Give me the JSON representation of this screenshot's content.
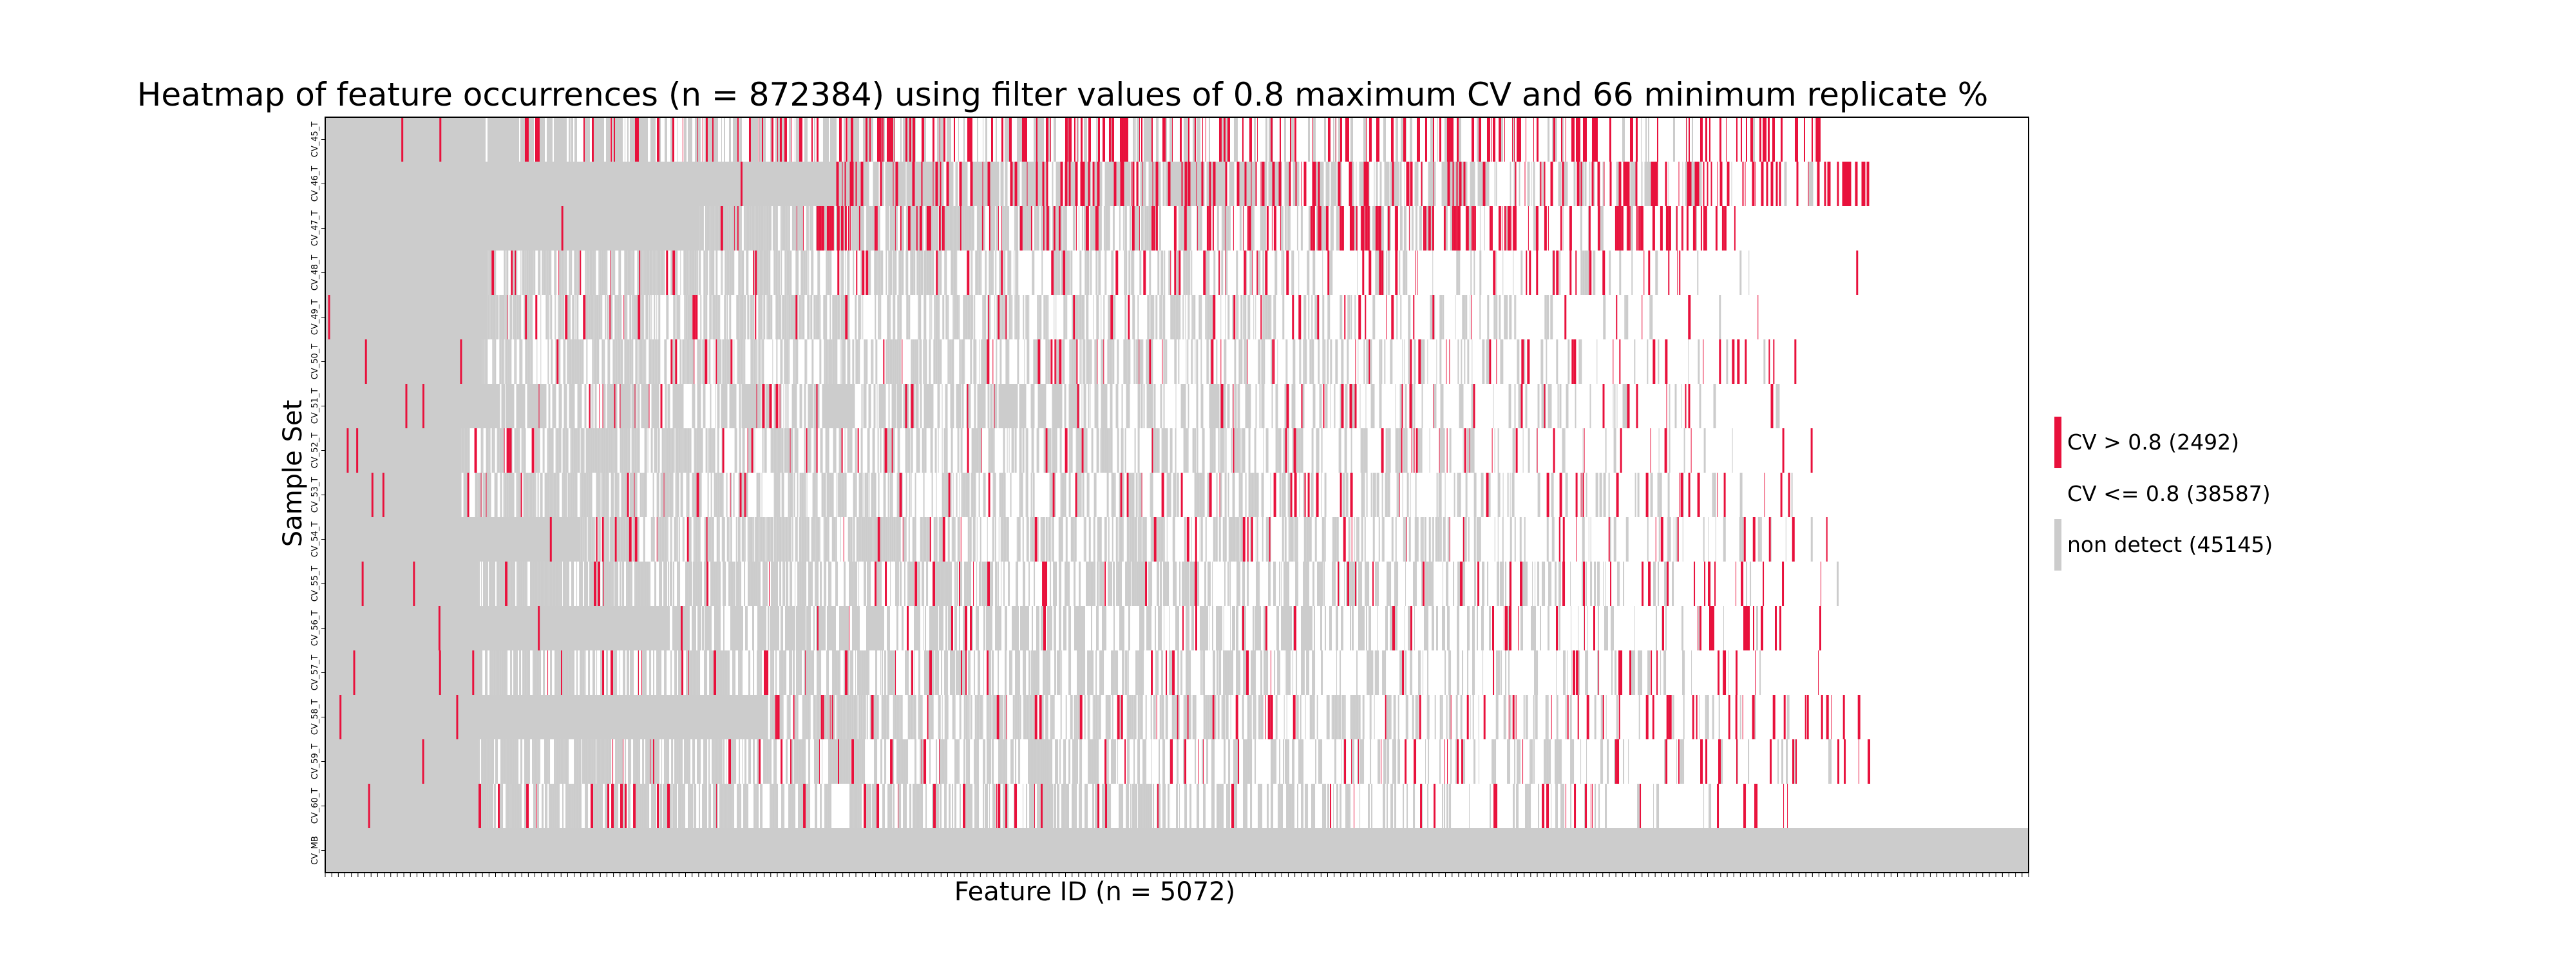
{
  "chart_data": {
    "type": "heatmap",
    "title": "Heatmap of feature occurrences (n = 872384) using filter values of 0.8 maximum CV and 66 minimum replicate %",
    "xlabel": "Feature ID (n = 5072)",
    "ylabel": "Sample Set",
    "x_tick_labels_shown": false,
    "grid": false,
    "legend_position": "right",
    "rows": [
      "CV_45_T",
      "CV_46_T",
      "CV_47_T",
      "CV_48_T",
      "CV_49_T",
      "CV_50_T",
      "CV_51_T",
      "CV_52_T",
      "CV_53_T",
      "CV_54_T",
      "CV_55_T",
      "CV_56_T",
      "CV_57_T",
      "CV_58_T",
      "CV_59_T",
      "CV_60_T",
      "CV_MB"
    ],
    "categories": [
      {
        "name": "CV > 0.8 (2492)",
        "color": "#e8113c"
      },
      {
        "name": "CV <= 0.8 (38587)",
        "color": "#ffffff"
      },
      {
        "name": "non detect (45145)",
        "color": "#cccccc"
      }
    ],
    "row_profiles": [
      {
        "gray_end": 0.093,
        "mix_end": 0.88,
        "white_start": 0.3,
        "red_density": 0.45
      },
      {
        "gray_end": 0.3,
        "mix_end": 0.905,
        "white_start": 0.74,
        "red_density": 0.6
      },
      {
        "gray_end": 0.22,
        "mix_end": 0.83,
        "white_start": 0.52,
        "red_density": 0.5
      },
      {
        "gray_end": 0.095,
        "mix_end": 0.9,
        "white_start": 0.48,
        "red_density": 0.12
      },
      {
        "gray_end": 0.095,
        "mix_end": 0.875,
        "white_start": 0.52,
        "red_density": 0.1
      },
      {
        "gray_end": 0.092,
        "mix_end": 0.875,
        "white_start": 0.55,
        "red_density": 0.11
      },
      {
        "gray_end": 0.1,
        "mix_end": 0.87,
        "white_start": 0.56,
        "red_density": 0.12
      },
      {
        "gray_end": 0.08,
        "mix_end": 0.875,
        "white_start": 0.55,
        "red_density": 0.12
      },
      {
        "gray_end": 0.08,
        "mix_end": 0.87,
        "white_start": 0.58,
        "red_density": 0.1
      },
      {
        "gray_end": 0.15,
        "mix_end": 0.905,
        "white_start": 0.62,
        "red_density": 0.12
      },
      {
        "gray_end": 0.09,
        "mix_end": 0.9,
        "white_start": 0.63,
        "red_density": 0.11
      },
      {
        "gray_end": 0.2,
        "mix_end": 0.88,
        "white_start": 0.62,
        "red_density": 0.1
      },
      {
        "gray_end": 0.09,
        "mix_end": 0.89,
        "white_start": 0.6,
        "red_density": 0.13
      },
      {
        "gray_end": 0.26,
        "mix_end": 0.905,
        "white_start": 0.6,
        "red_density": 0.14
      },
      {
        "gray_end": 0.09,
        "mix_end": 0.91,
        "white_start": 0.62,
        "red_density": 0.12
      },
      {
        "gray_end": 0.09,
        "mix_end": 0.87,
        "white_start": 0.58,
        "red_density": 0.12
      },
      {
        "gray_end": 1.0,
        "mix_end": 1.0,
        "white_start": 1.0,
        "red_density": 0.0
      }
    ]
  }
}
